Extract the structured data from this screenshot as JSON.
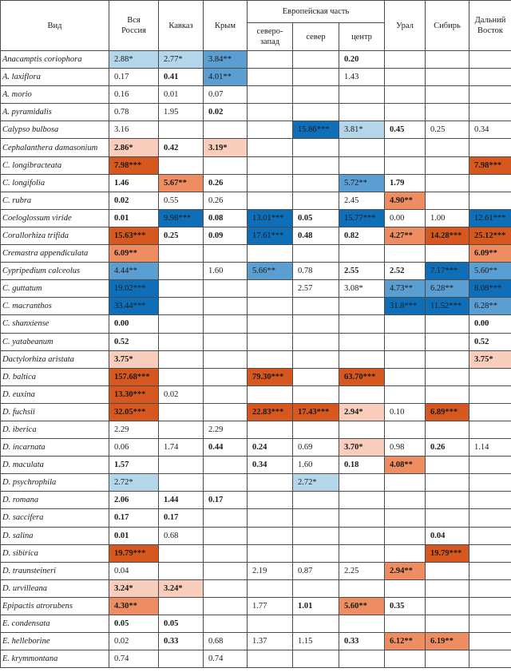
{
  "header": {
    "species": "Вид",
    "russia": "Вся\nРоссия",
    "caucasus": "Кавказ",
    "crimea": "Крым",
    "european": "Европейская часть",
    "northwest": "северо-\nзапад",
    "north": "север",
    "center": "центр",
    "ural": "Урал",
    "siberia": "Сибирь",
    "fareast": "Дальний\nВосток"
  },
  "palette": {
    "light": "#b4d6ea",
    "mid": "#5b9ed1",
    "dark": "#0e6fb8",
    "pale": "#f8cdbb",
    "orange": "#ee8d61",
    "deep": "#d7581e"
  },
  "rows": [
    {
      "name": "Anacamptis coriophora",
      "cells": [
        {
          "v": "2.88*",
          "c": "light"
        },
        {
          "v": "2.77*",
          "c": "light"
        },
        {
          "v": "3.84**",
          "c": "mid"
        },
        {
          "v": ""
        },
        {
          "v": ""
        },
        {
          "v": "0.20",
          "b": true
        },
        {
          "v": ""
        },
        {
          "v": ""
        },
        {
          "v": ""
        }
      ]
    },
    {
      "name": "A. laxiflora",
      "cells": [
        {
          "v": "0.17"
        },
        {
          "v": "0.41",
          "b": true
        },
        {
          "v": "4.01**",
          "c": "mid"
        },
        {
          "v": ""
        },
        {
          "v": ""
        },
        {
          "v": "1.43"
        },
        {
          "v": ""
        },
        {
          "v": ""
        },
        {
          "v": ""
        }
      ]
    },
    {
      "name": "A. morio",
      "cells": [
        {
          "v": "0.16"
        },
        {
          "v": "0.01"
        },
        {
          "v": "0.07"
        },
        {
          "v": ""
        },
        {
          "v": ""
        },
        {
          "v": ""
        },
        {
          "v": ""
        },
        {
          "v": ""
        },
        {
          "v": ""
        }
      ]
    },
    {
      "name": "A. pyramidalis",
      "cells": [
        {
          "v": "0.78"
        },
        {
          "v": "1.95"
        },
        {
          "v": "0.02",
          "b": true
        },
        {
          "v": ""
        },
        {
          "v": ""
        },
        {
          "v": ""
        },
        {
          "v": ""
        },
        {
          "v": ""
        },
        {
          "v": ""
        }
      ]
    },
    {
      "name": "Calypso bulbosa",
      "cells": [
        {
          "v": "3.16"
        },
        {
          "v": ""
        },
        {
          "v": ""
        },
        {
          "v": ""
        },
        {
          "v": "15.86***",
          "c": "dark"
        },
        {
          "v": "3.81*",
          "c": "light"
        },
        {
          "v": "0.45",
          "b": true
        },
        {
          "v": "0.25"
        },
        {
          "v": "0.34"
        }
      ]
    },
    {
      "name": "Cephalanthera damasonium",
      "cells": [
        {
          "v": "2.86*",
          "c": "pale",
          "b": true
        },
        {
          "v": "0.42",
          "b": true
        },
        {
          "v": "3.19*",
          "c": "pale",
          "b": true
        },
        {
          "v": ""
        },
        {
          "v": ""
        },
        {
          "v": ""
        },
        {
          "v": ""
        },
        {
          "v": ""
        },
        {
          "v": ""
        }
      ]
    },
    {
      "name": "C. longibracteata",
      "cells": [
        {
          "v": "7.98***",
          "c": "deep",
          "b": true
        },
        {
          "v": ""
        },
        {
          "v": ""
        },
        {
          "v": ""
        },
        {
          "v": ""
        },
        {
          "v": ""
        },
        {
          "v": ""
        },
        {
          "v": ""
        },
        {
          "v": "7.98***",
          "c": "deep",
          "b": true
        }
      ]
    },
    {
      "name": "C. longifolia",
      "cells": [
        {
          "v": "1.46",
          "b": true
        },
        {
          "v": "5.67**",
          "c": "orange",
          "b": true
        },
        {
          "v": "0.26",
          "b": true
        },
        {
          "v": ""
        },
        {
          "v": ""
        },
        {
          "v": "5.72**",
          "c": "mid"
        },
        {
          "v": "1.79",
          "b": true
        },
        {
          "v": ""
        },
        {
          "v": ""
        }
      ]
    },
    {
      "name": "C. rubra",
      "cells": [
        {
          "v": "0.02",
          "b": true
        },
        {
          "v": "0.55"
        },
        {
          "v": "0.26"
        },
        {
          "v": ""
        },
        {
          "v": ""
        },
        {
          "v": "2.45"
        },
        {
          "v": "4.90**",
          "c": "orange",
          "b": true
        },
        {
          "v": ""
        },
        {
          "v": ""
        }
      ]
    },
    {
      "name": "Coeloglossum viride",
      "cells": [
        {
          "v": "0.01",
          "b": true
        },
        {
          "v": "9.98***",
          "c": "dark"
        },
        {
          "v": "0.08",
          "b": true
        },
        {
          "v": "13.01***",
          "c": "dark"
        },
        {
          "v": "0.05",
          "b": true
        },
        {
          "v": "15.77***",
          "c": "dark"
        },
        {
          "v": "0.00"
        },
        {
          "v": "1.00"
        },
        {
          "v": "12.61***",
          "c": "dark"
        }
      ]
    },
    {
      "name": "Corallorhiza trifida",
      "cells": [
        {
          "v": "15.63***",
          "c": "deep",
          "b": true
        },
        {
          "v": "0.25",
          "b": true
        },
        {
          "v": "0.09",
          "b": true
        },
        {
          "v": "17.61***",
          "c": "dark"
        },
        {
          "v": "0.48",
          "b": true
        },
        {
          "v": "0.82",
          "b": true
        },
        {
          "v": "4.27**",
          "c": "orange",
          "b": true
        },
        {
          "v": "14.28***",
          "c": "deep",
          "b": true
        },
        {
          "v": "25.12***",
          "c": "deep",
          "b": true
        }
      ]
    },
    {
      "name": "Cremastra appendiculata",
      "cells": [
        {
          "v": "6.09**",
          "c": "orange",
          "b": true
        },
        {
          "v": ""
        },
        {
          "v": ""
        },
        {
          "v": ""
        },
        {
          "v": ""
        },
        {
          "v": ""
        },
        {
          "v": ""
        },
        {
          "v": ""
        },
        {
          "v": "6.09**",
          "c": "orange",
          "b": true
        }
      ]
    },
    {
      "name": "Cypripedium calceolus",
      "cells": [
        {
          "v": "4.44**",
          "c": "mid"
        },
        {
          "v": ""
        },
        {
          "v": "1.60"
        },
        {
          "v": "5.66**",
          "c": "mid"
        },
        {
          "v": "0.78"
        },
        {
          "v": "2.55",
          "b": true
        },
        {
          "v": "2.52",
          "b": true
        },
        {
          "v": "7.17***",
          "c": "dark"
        },
        {
          "v": "5.60**",
          "c": "mid"
        }
      ]
    },
    {
      "name": "C. guttatum",
      "cells": [
        {
          "v": "19.02***",
          "c": "dark"
        },
        {
          "v": ""
        },
        {
          "v": ""
        },
        {
          "v": ""
        },
        {
          "v": "2.57"
        },
        {
          "v": "3.08*"
        },
        {
          "v": "4.73**",
          "c": "mid"
        },
        {
          "v": "6.28**",
          "c": "mid"
        },
        {
          "v": "8.08***",
          "c": "dark"
        }
      ]
    },
    {
      "name": "C. macranthos",
      "cells": [
        {
          "v": "33.44***",
          "c": "dark"
        },
        {
          "v": ""
        },
        {
          "v": ""
        },
        {
          "v": ""
        },
        {
          "v": ""
        },
        {
          "v": ""
        },
        {
          "v": "31.8***",
          "c": "dark"
        },
        {
          "v": "11.52***",
          "c": "dark"
        },
        {
          "v": "6.28**",
          "c": "mid"
        }
      ]
    },
    {
      "name": "C. shanxiense",
      "cells": [
        {
          "v": "0.00",
          "b": true
        },
        {
          "v": ""
        },
        {
          "v": ""
        },
        {
          "v": ""
        },
        {
          "v": ""
        },
        {
          "v": ""
        },
        {
          "v": ""
        },
        {
          "v": ""
        },
        {
          "v": "0.00",
          "b": true
        }
      ]
    },
    {
      "name": "C. yatabeanum",
      "cells": [
        {
          "v": "0.52",
          "b": true
        },
        {
          "v": ""
        },
        {
          "v": ""
        },
        {
          "v": ""
        },
        {
          "v": ""
        },
        {
          "v": ""
        },
        {
          "v": ""
        },
        {
          "v": ""
        },
        {
          "v": "0.52",
          "b": true
        }
      ]
    },
    {
      "name": "Dactylorhiza aristata",
      "cells": [
        {
          "v": "3.75*",
          "c": "pale",
          "b": true
        },
        {
          "v": ""
        },
        {
          "v": ""
        },
        {
          "v": ""
        },
        {
          "v": ""
        },
        {
          "v": ""
        },
        {
          "v": ""
        },
        {
          "v": ""
        },
        {
          "v": "3.75*",
          "c": "pale",
          "b": true
        }
      ]
    },
    {
      "name": "D. baltica",
      "cells": [
        {
          "v": "157.68***",
          "c": "deep",
          "b": true
        },
        {
          "v": ""
        },
        {
          "v": ""
        },
        {
          "v": "79.30***",
          "c": "deep",
          "b": true
        },
        {
          "v": ""
        },
        {
          "v": "63.70***",
          "c": "deep",
          "b": true
        },
        {
          "v": ""
        },
        {
          "v": ""
        },
        {
          "v": ""
        }
      ]
    },
    {
      "name": "D. euxina",
      "cells": [
        {
          "v": "13.30***",
          "c": "deep",
          "b": true
        },
        {
          "v": "0.02"
        },
        {
          "v": ""
        },
        {
          "v": ""
        },
        {
          "v": ""
        },
        {
          "v": ""
        },
        {
          "v": ""
        },
        {
          "v": ""
        },
        {
          "v": ""
        }
      ]
    },
    {
      "name": "D. fuchsii",
      "cells": [
        {
          "v": "32.05***",
          "c": "deep",
          "b": true
        },
        {
          "v": ""
        },
        {
          "v": ""
        },
        {
          "v": "22.83***",
          "c": "deep",
          "b": true
        },
        {
          "v": "17.43***",
          "c": "deep",
          "b": true
        },
        {
          "v": "2.94*",
          "c": "pale",
          "b": true
        },
        {
          "v": "0.10"
        },
        {
          "v": "6.89***",
          "c": "deep",
          "b": true
        },
        {
          "v": ""
        }
      ]
    },
    {
      "name": "D. iberica",
      "cells": [
        {
          "v": "2.29"
        },
        {
          "v": ""
        },
        {
          "v": "2.29"
        },
        {
          "v": ""
        },
        {
          "v": ""
        },
        {
          "v": ""
        },
        {
          "v": ""
        },
        {
          "v": ""
        },
        {
          "v": ""
        }
      ]
    },
    {
      "name": "D. incarnata",
      "cells": [
        {
          "v": "0.06"
        },
        {
          "v": "1.74"
        },
        {
          "v": "0.44",
          "b": true
        },
        {
          "v": "0.24",
          "b": true
        },
        {
          "v": "0.69"
        },
        {
          "v": "3.70*",
          "c": "pale",
          "b": true
        },
        {
          "v": "0.98"
        },
        {
          "v": "0.26",
          "b": true
        },
        {
          "v": "1.14"
        }
      ]
    },
    {
      "name": "D. maculata",
      "cells": [
        {
          "v": "1.57",
          "b": true
        },
        {
          "v": ""
        },
        {
          "v": ""
        },
        {
          "v": "0.34",
          "b": true
        },
        {
          "v": "1.60"
        },
        {
          "v": "0.18",
          "b": true
        },
        {
          "v": "4.08**",
          "c": "orange",
          "b": true
        },
        {
          "v": ""
        },
        {
          "v": ""
        }
      ]
    },
    {
      "name": "D. psychrophila",
      "cells": [
        {
          "v": "2.72*",
          "c": "light"
        },
        {
          "v": ""
        },
        {
          "v": ""
        },
        {
          "v": ""
        },
        {
          "v": "2.72*",
          "c": "light"
        },
        {
          "v": ""
        },
        {
          "v": ""
        },
        {
          "v": ""
        },
        {
          "v": ""
        }
      ]
    },
    {
      "name": "D. romana",
      "cells": [
        {
          "v": "2.06",
          "b": true
        },
        {
          "v": "1.44",
          "b": true
        },
        {
          "v": "0.17",
          "b": true
        },
        {
          "v": ""
        },
        {
          "v": ""
        },
        {
          "v": ""
        },
        {
          "v": ""
        },
        {
          "v": ""
        },
        {
          "v": ""
        }
      ]
    },
    {
      "name": "D. saccifera",
      "cells": [
        {
          "v": "0.17",
          "b": true
        },
        {
          "v": "0.17",
          "b": true
        },
        {
          "v": ""
        },
        {
          "v": ""
        },
        {
          "v": ""
        },
        {
          "v": ""
        },
        {
          "v": ""
        },
        {
          "v": ""
        },
        {
          "v": ""
        }
      ]
    },
    {
      "name": "D. salina",
      "cells": [
        {
          "v": "0.01",
          "b": true
        },
        {
          "v": "0.68"
        },
        {
          "v": ""
        },
        {
          "v": ""
        },
        {
          "v": ""
        },
        {
          "v": ""
        },
        {
          "v": ""
        },
        {
          "v": "0.04",
          "b": true
        },
        {
          "v": ""
        }
      ]
    },
    {
      "name": "D. sibirica",
      "cells": [
        {
          "v": "19.79***",
          "c": "deep",
          "b": true
        },
        {
          "v": ""
        },
        {
          "v": ""
        },
        {
          "v": ""
        },
        {
          "v": ""
        },
        {
          "v": ""
        },
        {
          "v": ""
        },
        {
          "v": "19.79***",
          "c": "deep",
          "b": true
        },
        {
          "v": ""
        }
      ]
    },
    {
      "name": "D. traunsteineri",
      "cells": [
        {
          "v": "0.04"
        },
        {
          "v": ""
        },
        {
          "v": ""
        },
        {
          "v": "2.19"
        },
        {
          "v": "0.87"
        },
        {
          "v": "2.25"
        },
        {
          "v": "2.94**",
          "c": "orange",
          "b": true
        },
        {
          "v": ""
        },
        {
          "v": ""
        }
      ]
    },
    {
      "name": "D. urvilleana",
      "cells": [
        {
          "v": "3.24*",
          "c": "pale",
          "b": true
        },
        {
          "v": "3.24*",
          "c": "pale",
          "b": true
        },
        {
          "v": ""
        },
        {
          "v": ""
        },
        {
          "v": ""
        },
        {
          "v": ""
        },
        {
          "v": ""
        },
        {
          "v": ""
        },
        {
          "v": ""
        }
      ]
    },
    {
      "name": "Epipactis atrorubens",
      "cells": [
        {
          "v": "4.30**",
          "c": "orange",
          "b": true
        },
        {
          "v": ""
        },
        {
          "v": ""
        },
        {
          "v": "1.77"
        },
        {
          "v": "1.01",
          "b": true
        },
        {
          "v": "5.60**",
          "c": "orange",
          "b": true
        },
        {
          "v": "0.35",
          "b": true
        },
        {
          "v": ""
        },
        {
          "v": ""
        }
      ]
    },
    {
      "name": "E. condensata",
      "cells": [
        {
          "v": "0.05",
          "b": true
        },
        {
          "v": "0.05",
          "b": true
        },
        {
          "v": ""
        },
        {
          "v": ""
        },
        {
          "v": ""
        },
        {
          "v": ""
        },
        {
          "v": ""
        },
        {
          "v": ""
        },
        {
          "v": ""
        }
      ]
    },
    {
      "name": "E. helleborine",
      "cells": [
        {
          "v": "0.02"
        },
        {
          "v": "0.33",
          "b": true
        },
        {
          "v": "0.68"
        },
        {
          "v": "1.37"
        },
        {
          "v": "1.15"
        },
        {
          "v": "0.33",
          "b": true
        },
        {
          "v": "6.12**",
          "c": "orange",
          "b": true
        },
        {
          "v": "6.19**",
          "c": "orange",
          "b": true
        },
        {
          "v": ""
        }
      ]
    },
    {
      "name": "E. krymmontana",
      "cells": [
        {
          "v": "0.74"
        },
        {
          "v": ""
        },
        {
          "v": "0.74"
        },
        {
          "v": ""
        },
        {
          "v": ""
        },
        {
          "v": ""
        },
        {
          "v": ""
        },
        {
          "v": ""
        },
        {
          "v": ""
        }
      ]
    }
  ]
}
